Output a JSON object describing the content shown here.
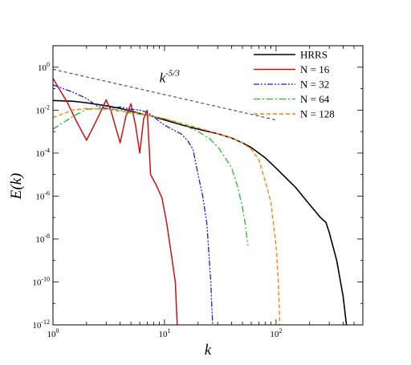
{
  "chart_data": {
    "type": "line",
    "xlabel": "k",
    "ylabel": "E(k)",
    "xscale": "log",
    "yscale": "log",
    "xlim": [
      1,
      600
    ],
    "ylim": [
      1e-12,
      10
    ],
    "x_ticks": [
      {
        "value": 1,
        "base": "10",
        "exp": "0"
      },
      {
        "value": 10,
        "base": "10",
        "exp": "1"
      },
      {
        "value": 100,
        "base": "10",
        "exp": "2"
      }
    ],
    "y_ticks": [
      {
        "value": 1,
        "base": "10",
        "exp": "0"
      },
      {
        "value": 0.01,
        "base": "10",
        "exp": "-2"
      },
      {
        "value": 0.0001,
        "base": "10",
        "exp": "-4"
      },
      {
        "value": 1e-06,
        "base": "10",
        "exp": "-6"
      },
      {
        "value": 1e-08,
        "base": "10",
        "exp": "-8"
      },
      {
        "value": 1e-10,
        "base": "10",
        "exp": "-10"
      },
      {
        "value": 1e-12,
        "base": "10",
        "exp": "-12"
      }
    ],
    "grid": false,
    "legend_position": "top-right",
    "annotation": {
      "text": "k",
      "superscript": "-5/3",
      "x": 9,
      "y": 0.2
    },
    "reference_line": {
      "style": "dashed",
      "color": "#555555",
      "points": [
        [
          1,
          0.8
        ],
        [
          100,
          0.0035
        ]
      ]
    },
    "series": [
      {
        "name": "HRRS",
        "color": "#000000",
        "dash": "",
        "width": 1.6,
        "points": [
          [
            1,
            0.028
          ],
          [
            1.5,
            0.026
          ],
          [
            2,
            0.022
          ],
          [
            3,
            0.016
          ],
          [
            4,
            0.012
          ],
          [
            5,
            0.009
          ],
          [
            6,
            0.007
          ],
          [
            8,
            0.005
          ],
          [
            10,
            0.0035
          ],
          [
            15,
            0.0019
          ],
          [
            20,
            0.0013
          ],
          [
            30,
            0.0008
          ],
          [
            40,
            0.0005
          ],
          [
            50,
            0.0003
          ],
          [
            60,
            0.00018
          ],
          [
            80,
            6e-05
          ],
          [
            100,
            2e-05
          ],
          [
            150,
            2.5e-06
          ],
          [
            200,
            4e-07
          ],
          [
            250,
            1e-07
          ],
          [
            280,
            6e-08
          ],
          [
            300,
            2e-08
          ],
          [
            350,
            1e-09
          ],
          [
            400,
            2e-11
          ],
          [
            430,
            8e-13
          ],
          [
            450,
            1e-13
          ]
        ]
      },
      {
        "name": "N = 16",
        "color": "#cc1111",
        "dash": "",
        "width": 1.5,
        "points": [
          [
            1,
            0.3
          ],
          [
            1.35,
            0.022
          ],
          [
            1.6,
            0.0035
          ],
          [
            2,
            0.0004
          ],
          [
            2.5,
            0.004
          ],
          [
            3,
            0.03
          ],
          [
            3.3,
            0.01
          ],
          [
            4,
            0.0003
          ],
          [
            4.5,
            0.005
          ],
          [
            5,
            0.02
          ],
          [
            5.5,
            0.002
          ],
          [
            6,
            0.0001
          ],
          [
            6.5,
            0.004
          ],
          [
            7,
            0.01
          ],
          [
            7.5,
            1e-05
          ],
          [
            8.5,
            3e-06
          ],
          [
            9.5,
            8e-07
          ],
          [
            10.5,
            5e-08
          ],
          [
            11.5,
            2e-09
          ],
          [
            12.5,
            1e-10
          ],
          [
            13,
            1e-12
          ],
          [
            13.2,
            1e-13
          ]
        ]
      },
      {
        "name": "N = 32",
        "color": "#1a1adb",
        "dash": "7 2 2 2 2 2",
        "width": 1.3,
        "points": [
          [
            1,
            0.15
          ],
          [
            1.5,
            0.07
          ],
          [
            2,
            0.035
          ],
          [
            2.5,
            0.015
          ],
          [
            3,
            0.012
          ],
          [
            4,
            0.014
          ],
          [
            5,
            0.011
          ],
          [
            6,
            0.01
          ],
          [
            7,
            0.008
          ],
          [
            8,
            0.005
          ],
          [
            9,
            0.003
          ],
          [
            10,
            0.002
          ],
          [
            12,
            0.0012
          ],
          [
            14,
            0.0008
          ],
          [
            16,
            0.0004
          ],
          [
            18,
            0.00015
          ],
          [
            20,
            1e-05
          ],
          [
            22,
            1e-06
          ],
          [
            24,
            5e-08
          ],
          [
            26,
            1e-10
          ],
          [
            27,
            1e-12
          ],
          [
            27.5,
            1e-13
          ]
        ]
      },
      {
        "name": "N = 64",
        "color": "#22bb22",
        "dash": "8 3 2 3",
        "width": 1.3,
        "points": [
          [
            1,
            0.0013
          ],
          [
            1.5,
            0.005
          ],
          [
            2,
            0.011
          ],
          [
            3,
            0.012
          ],
          [
            4,
            0.01
          ],
          [
            5,
            0.007
          ],
          [
            6,
            0.0065
          ],
          [
            8,
            0.005
          ],
          [
            10,
            0.004
          ],
          [
            15,
            0.002
          ],
          [
            20,
            0.001
          ],
          [
            25,
            0.0005
          ],
          [
            30,
            0.0002
          ],
          [
            35,
            6e-05
          ],
          [
            40,
            2e-05
          ],
          [
            45,
            3e-06
          ],
          [
            50,
            3e-07
          ],
          [
            53,
            5e-08
          ],
          [
            55,
            1e-08
          ],
          [
            56,
            5e-09
          ]
        ]
      },
      {
        "name": "N = 128",
        "color": "#ff7f0e",
        "dash": "5 3",
        "width": 1.4,
        "points": [
          [
            1,
            0.0045
          ],
          [
            1.5,
            0.01
          ],
          [
            2,
            0.012
          ],
          [
            3,
            0.011
          ],
          [
            4,
            0.009
          ],
          [
            5,
            0.008
          ],
          [
            6,
            0.007
          ],
          [
            8,
            0.005
          ],
          [
            10,
            0.004
          ],
          [
            15,
            0.0022
          ],
          [
            20,
            0.0015
          ],
          [
            30,
            0.0008
          ],
          [
            40,
            0.0005
          ],
          [
            50,
            0.0003
          ],
          [
            60,
            0.00015
          ],
          [
            70,
            5e-05
          ],
          [
            80,
            5e-06
          ],
          [
            90,
            5e-07
          ],
          [
            100,
            5e-09
          ],
          [
            105,
            1e-10
          ],
          [
            108,
            1e-12
          ],
          [
            110,
            1e-13
          ]
        ]
      }
    ]
  }
}
